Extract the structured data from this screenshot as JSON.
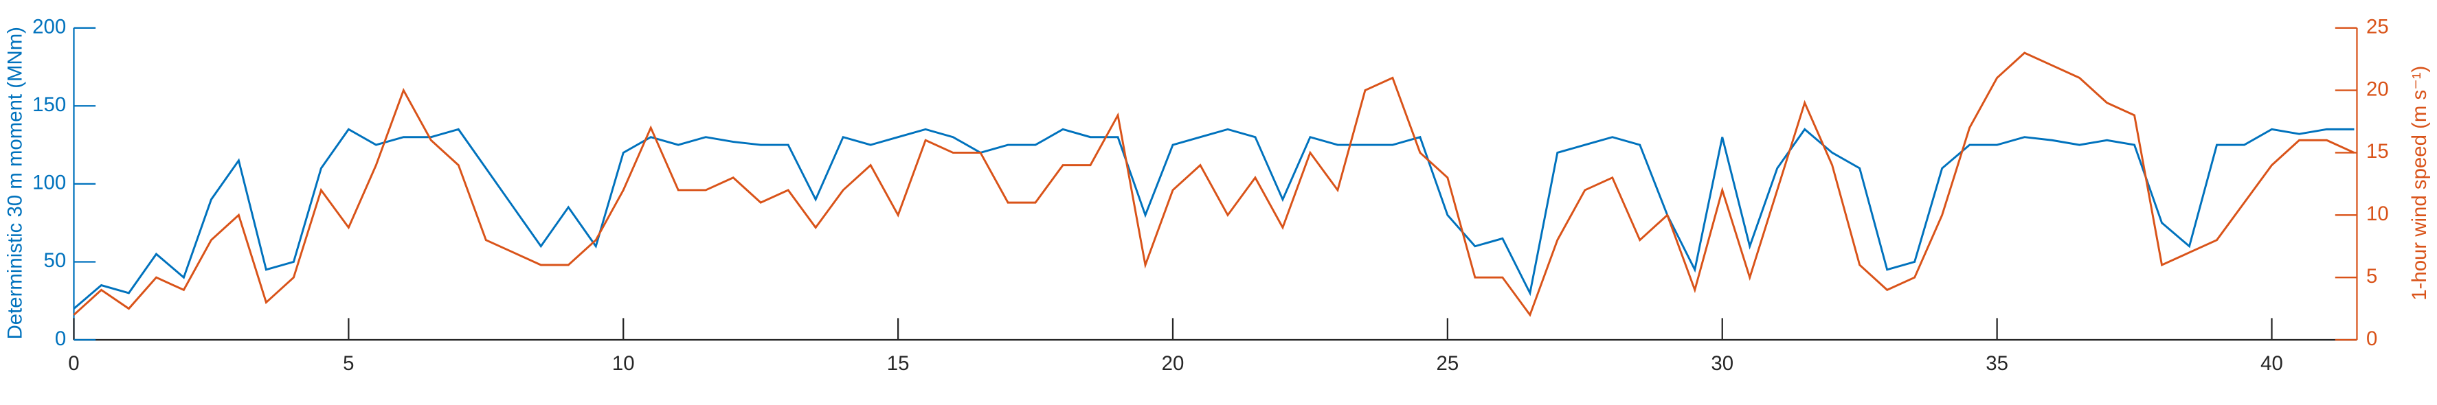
{
  "chart_data": {
    "type": "line",
    "x": [
      0,
      0.5,
      1,
      1.5,
      2,
      2.5,
      3,
      3.5,
      4,
      4.5,
      5,
      5.5,
      6,
      6.5,
      7,
      7.5,
      8,
      8.5,
      9,
      9.5,
      10,
      10.5,
      11,
      11.5,
      12,
      12.5,
      13,
      13.5,
      14,
      14.5,
      15,
      15.5,
      16,
      16.5,
      17,
      17.5,
      18,
      18.5,
      19,
      19.5,
      20,
      20.5,
      21,
      21.5,
      22,
      22.5,
      23,
      23.5,
      24,
      24.5,
      25,
      25.5,
      26,
      26.5,
      27,
      27.5,
      28,
      28.5,
      29,
      29.5,
      30,
      30.5,
      31,
      31.5,
      32,
      32.5,
      33,
      33.5,
      34,
      34.5,
      35,
      35.5,
      36,
      36.5,
      37,
      37.5,
      38,
      38.5,
      39,
      39.5,
      40,
      40.5,
      41,
      41.5
    ],
    "series": [
      {
        "name": "Deterministic 30 m moment",
        "color": "#0072bd",
        "axis": "y",
        "values": [
          20,
          35,
          30,
          55,
          40,
          90,
          115,
          45,
          50,
          110,
          135,
          125,
          130,
          130,
          135,
          110,
          85,
          60,
          85,
          60,
          120,
          130,
          125,
          130,
          127,
          125,
          125,
          90,
          130,
          125,
          130,
          135,
          130,
          120,
          125,
          125,
          135,
          130,
          130,
          80,
          125,
          130,
          135,
          130,
          90,
          130,
          125,
          125,
          125,
          130,
          80,
          60,
          65,
          30,
          120,
          125,
          130,
          125,
          80,
          45,
          130,
          60,
          110,
          135,
          120,
          110,
          45,
          50,
          110,
          125,
          125,
          130,
          128,
          125,
          128,
          125,
          75,
          60,
          125,
          125,
          135,
          132,
          135,
          135
        ]
      },
      {
        "name": "1-hour wind speed",
        "color": "#d95319",
        "axis": "y2",
        "values": [
          2,
          4,
          2.5,
          5,
          4,
          8,
          10,
          3,
          5,
          12,
          9,
          14,
          20,
          16,
          14,
          8,
          7,
          6,
          6,
          8,
          12,
          17,
          12,
          12,
          13,
          11,
          12,
          9,
          12,
          14,
          10,
          16,
          15,
          15,
          11,
          11,
          14,
          14,
          18,
          6,
          12,
          14,
          10,
          13,
          9,
          15,
          12,
          20,
          21,
          15,
          13,
          5,
          5,
          2,
          8,
          12,
          13,
          8,
          10,
          4,
          12,
          5,
          12,
          19,
          14,
          6,
          4,
          5,
          10,
          17,
          21,
          23,
          22,
          21,
          19,
          18,
          6,
          7,
          8,
          11,
          14,
          16,
          16,
          15
        ]
      }
    ],
    "ylabel": "Deterministic 30 m moment (MNm)",
    "y2label": "1-hour wind speed (m s⁻¹)",
    "xlim": [
      0,
      41.55
    ],
    "xticks": [
      0,
      5,
      10,
      15,
      20,
      25,
      30,
      35,
      40
    ],
    "ylim": [
      0,
      200
    ],
    "yticks": [
      0,
      50,
      100,
      150,
      200
    ],
    "y2lim": [
      0,
      25
    ],
    "y2ticks": [
      0,
      5,
      10,
      15,
      20,
      25
    ]
  }
}
